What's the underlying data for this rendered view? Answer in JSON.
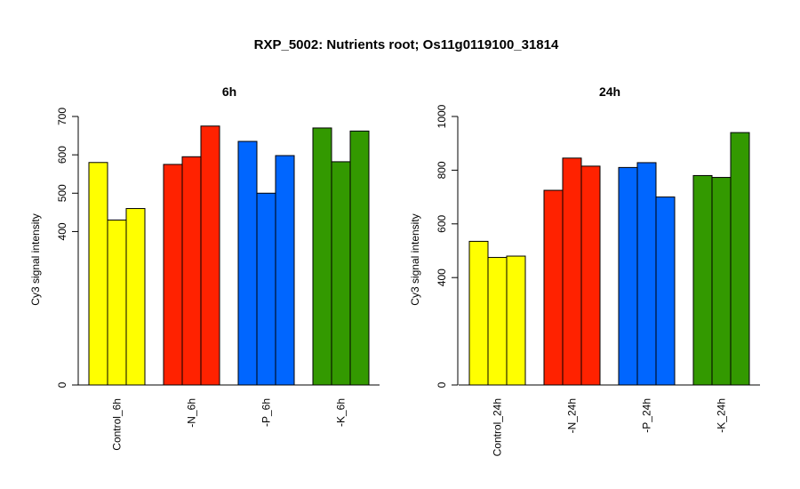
{
  "title": "RXP_5002: Nutrients root; Os11g0119100_31814",
  "colors": [
    "#ffff00",
    "#ff2200",
    "#0066ff",
    "#339900"
  ],
  "chart_data": [
    {
      "type": "bar",
      "title": "6h",
      "ylabel": "Cy3 signal intensity",
      "ylim": [
        0,
        700
      ],
      "yticks": [
        0,
        400,
        500,
        600,
        700
      ],
      "categories": [
        "Control_6h",
        "-N_6h",
        "-P_6h",
        "-K_6h"
      ],
      "groups": [
        {
          "name": "Control_6h",
          "color": "#ffff00",
          "values": [
            580,
            430,
            460
          ]
        },
        {
          "name": "-N_6h",
          "color": "#ff2200",
          "values": [
            575,
            595,
            675
          ]
        },
        {
          "name": "-P_6h",
          "color": "#0066ff",
          "values": [
            635,
            500,
            598
          ]
        },
        {
          "name": "-K_6h",
          "color": "#339900",
          "values": [
            670,
            582,
            662
          ]
        }
      ]
    },
    {
      "type": "bar",
      "title": "24h",
      "ylabel": "Cy3 signal intensity",
      "ylim": [
        0,
        1000
      ],
      "yticks": [
        0,
        400,
        600,
        800,
        1000
      ],
      "categories": [
        "Control_24h",
        "-N_24h",
        "-P_24h",
        "-K_24h"
      ],
      "groups": [
        {
          "name": "Control_24h",
          "color": "#ffff00",
          "values": [
            535,
            475,
            480
          ]
        },
        {
          "name": "-N_24h",
          "color": "#ff2200",
          "values": [
            725,
            845,
            815
          ]
        },
        {
          "name": "-P_24h",
          "color": "#0066ff",
          "values": [
            810,
            828,
            700
          ]
        },
        {
          "name": "-K_24h",
          "color": "#339900",
          "values": [
            780,
            773,
            940
          ]
        }
      ]
    }
  ]
}
